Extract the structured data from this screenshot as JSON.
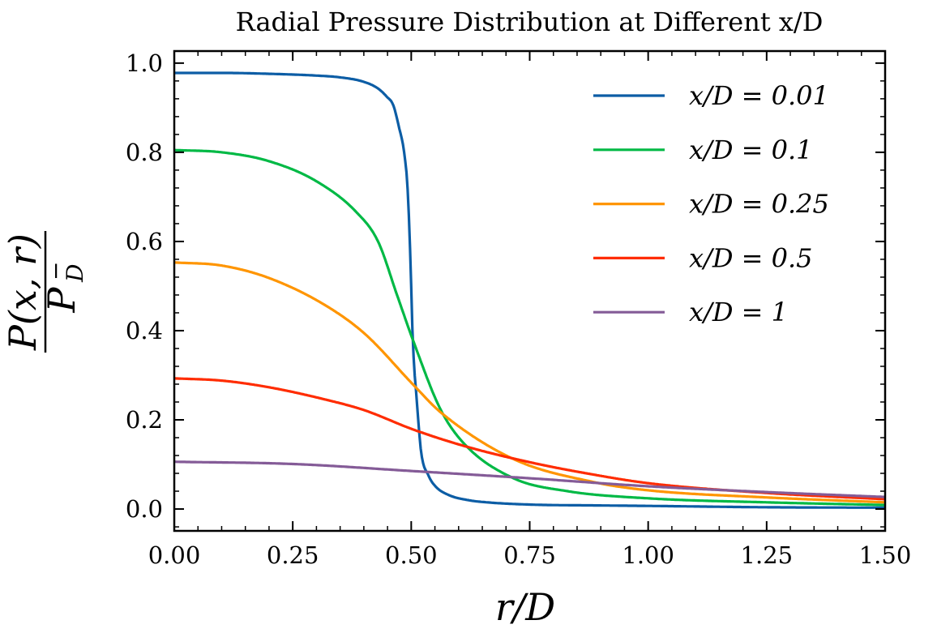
{
  "chart_data": {
    "type": "line",
    "title": "Radial Pressure Distribution at Different x/D",
    "xlabel": "r/D",
    "ylabel_num": "P(x, r)",
    "ylabel_den": "P",
    "ylabel_den_sub": "D",
    "ylabel_den_sup": "−",
    "xlim": [
      0,
      1.5
    ],
    "ylim": [
      -0.049,
      1.027
    ],
    "xticks": [
      0,
      0.25,
      0.5,
      0.75,
      1.0,
      1.25,
      1.5
    ],
    "xtick_labels": [
      "0.00",
      "0.25",
      "0.50",
      "0.75",
      "1.00",
      "1.25",
      "1.50"
    ],
    "yticks": [
      0,
      0.2,
      0.4,
      0.6,
      0.8,
      1.0
    ],
    "ytick_labels": [
      "0.0",
      "0.2",
      "0.4",
      "0.6",
      "0.8",
      "1.0"
    ],
    "x_minor_step": 0.05,
    "y_minor_step": 0.04,
    "grid": false,
    "legend_position": "top-right",
    "series": [
      {
        "name": "x/D = 0.01",
        "color": "#0C5DA5",
        "x": [
          0,
          0.1,
          0.2,
          0.3,
          0.35,
          0.4,
          0.43,
          0.449,
          0.462,
          0.474,
          0.485,
          0.493,
          0.5,
          0.503,
          0.512,
          0.521,
          0.536,
          0.551,
          0.58,
          0.62,
          0.66,
          0.75,
          0.9,
          1.0,
          1.25,
          1.5
        ],
        "y": [
          0.978,
          0.978,
          0.976,
          0.972,
          0.968,
          0.958,
          0.943,
          0.924,
          0.906,
          0.857,
          0.8,
          0.707,
          0.5,
          0.386,
          0.24,
          0.127,
          0.076,
          0.051,
          0.031,
          0.02,
          0.015,
          0.01,
          0.008,
          0.007,
          0.004,
          0.003
        ]
      },
      {
        "name": "x/D = 0.1",
        "color": "#00B945",
        "x": [
          0,
          0.1,
          0.2,
          0.3,
          0.385,
          0.43,
          0.471,
          0.505,
          0.562,
          0.613,
          0.716,
          0.83,
          1.0,
          1.25,
          1.5
        ],
        "y": [
          0.805,
          0.8,
          0.78,
          0.735,
          0.665,
          0.6,
          0.477,
          0.375,
          0.223,
          0.145,
          0.069,
          0.04,
          0.024,
          0.015,
          0.009
        ]
      },
      {
        "name": "x/D = 0.25",
        "color": "#FF9500",
        "x": [
          0,
          0.1,
          0.2,
          0.317,
          0.402,
          0.505,
          0.562,
          0.716,
          0.887,
          1.0,
          1.25,
          1.5
        ],
        "y": [
          0.553,
          0.546,
          0.518,
          0.458,
          0.393,
          0.278,
          0.217,
          0.112,
          0.06,
          0.042,
          0.026,
          0.015
        ]
      },
      {
        "name": "x/D = 0.5",
        "color": "#FF2C00",
        "x": [
          0,
          0.1,
          0.2,
          0.317,
          0.4,
          0.505,
          0.613,
          0.75,
          0.87,
          1.0,
          1.25,
          1.5
        ],
        "y": [
          0.293,
          0.288,
          0.273,
          0.246,
          0.222,
          0.178,
          0.141,
          0.105,
          0.08,
          0.058,
          0.036,
          0.022
        ]
      },
      {
        "name": "x/D = 1",
        "color": "#845B97",
        "x": [
          0,
          0.25,
          0.505,
          0.75,
          1.0,
          1.25,
          1.5
        ],
        "y": [
          0.106,
          0.101,
          0.085,
          0.069,
          0.051,
          0.038,
          0.027
        ]
      }
    ]
  }
}
